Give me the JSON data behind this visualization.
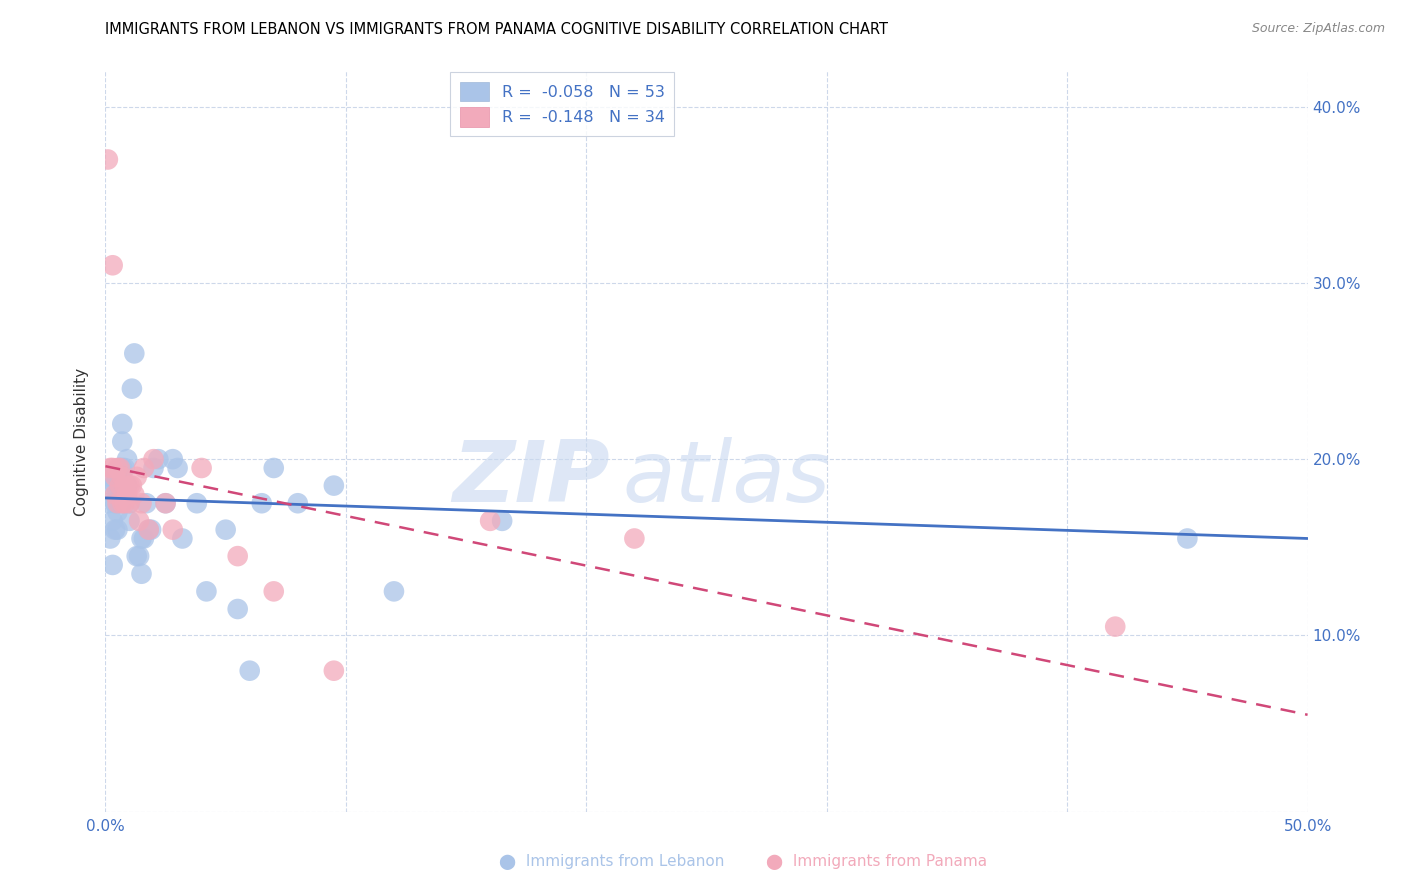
{
  "title": "IMMIGRANTS FROM LEBANON VS IMMIGRANTS FROM PANAMA COGNITIVE DISABILITY CORRELATION CHART",
  "source": "Source: ZipAtlas.com",
  "ylabel": "Cognitive Disability",
  "xlim": [
    0.0,
    0.5
  ],
  "ylim": [
    0.0,
    0.42
  ],
  "yticks_right": [
    0.1,
    0.2,
    0.3,
    0.4
  ],
  "ytick_labels_right": [
    "10.0%",
    "20.0%",
    "30.0%",
    "40.0%"
  ],
  "lebanon_R": -0.058,
  "lebanon_N": 53,
  "panama_R": -0.148,
  "panama_N": 34,
  "lebanon_color": "#aac4e8",
  "panama_color": "#f2aabb",
  "lebanon_line_color": "#4472c4",
  "panama_line_color": "#d04878",
  "tick_label_color": "#4472c4",
  "lebanon_x": [
    0.001,
    0.002,
    0.002,
    0.003,
    0.003,
    0.003,
    0.004,
    0.004,
    0.004,
    0.005,
    0.005,
    0.005,
    0.005,
    0.006,
    0.006,
    0.006,
    0.007,
    0.007,
    0.007,
    0.008,
    0.008,
    0.009,
    0.009,
    0.01,
    0.01,
    0.011,
    0.012,
    0.013,
    0.014,
    0.015,
    0.015,
    0.016,
    0.017,
    0.018,
    0.019,
    0.02,
    0.022,
    0.025,
    0.028,
    0.03,
    0.032,
    0.038,
    0.042,
    0.05,
    0.055,
    0.06,
    0.065,
    0.07,
    0.08,
    0.095,
    0.12,
    0.165,
    0.45
  ],
  "lebanon_y": [
    0.175,
    0.19,
    0.155,
    0.185,
    0.165,
    0.14,
    0.185,
    0.175,
    0.16,
    0.19,
    0.18,
    0.17,
    0.16,
    0.195,
    0.185,
    0.175,
    0.22,
    0.21,
    0.195,
    0.195,
    0.185,
    0.2,
    0.185,
    0.175,
    0.165,
    0.24,
    0.26,
    0.145,
    0.145,
    0.155,
    0.135,
    0.155,
    0.175,
    0.16,
    0.16,
    0.195,
    0.2,
    0.175,
    0.2,
    0.195,
    0.155,
    0.175,
    0.125,
    0.16,
    0.115,
    0.08,
    0.175,
    0.195,
    0.175,
    0.185,
    0.125,
    0.165,
    0.155
  ],
  "panama_x": [
    0.001,
    0.002,
    0.003,
    0.003,
    0.004,
    0.004,
    0.005,
    0.005,
    0.006,
    0.006,
    0.007,
    0.007,
    0.008,
    0.008,
    0.009,
    0.01,
    0.01,
    0.011,
    0.012,
    0.013,
    0.014,
    0.015,
    0.016,
    0.018,
    0.02,
    0.025,
    0.028,
    0.04,
    0.055,
    0.07,
    0.095,
    0.16,
    0.22,
    0.42
  ],
  "panama_y": [
    0.37,
    0.195,
    0.31,
    0.195,
    0.19,
    0.18,
    0.195,
    0.175,
    0.195,
    0.185,
    0.19,
    0.175,
    0.185,
    0.175,
    0.18,
    0.185,
    0.175,
    0.185,
    0.18,
    0.19,
    0.165,
    0.175,
    0.195,
    0.16,
    0.2,
    0.175,
    0.16,
    0.195,
    0.145,
    0.125,
    0.08,
    0.165,
    0.155,
    0.105
  ],
  "leb_line_x": [
    0.0,
    0.5
  ],
  "leb_line_y": [
    0.178,
    0.155
  ],
  "pan_line_x": [
    0.0,
    0.5
  ],
  "pan_line_y": [
    0.196,
    0.055
  ]
}
